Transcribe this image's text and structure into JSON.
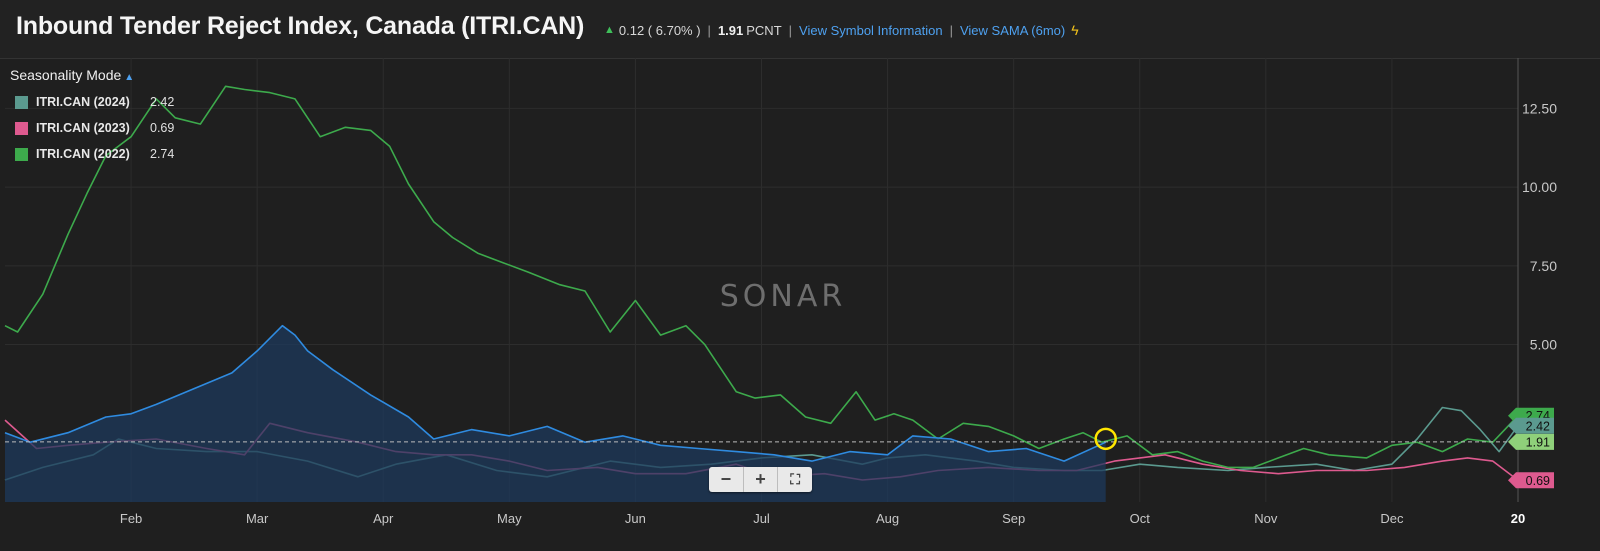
{
  "header": {
    "title": "Inbound Tender Reject Index, Canada (ITRI.CAN)",
    "change": "0.12 ( 6.70% )",
    "value": "1.91",
    "unit": "PCNT",
    "link_symbol": "View Symbol Information",
    "link_sama": "View SAMA (6mo)",
    "sama_icon": "sama-bolt-icon"
  },
  "legend": {
    "mode_label": "Seasonality Mode",
    "items": [
      {
        "name": "ITRI.CAN (2024)",
        "value": "2.42",
        "color": "#5b9a8f"
      },
      {
        "name": "ITRI.CAN (2023)",
        "value": "0.69",
        "color": "#de5a8f"
      },
      {
        "name": "ITRI.CAN (2022)",
        "value": "2.74",
        "color": "#3daa4c"
      }
    ]
  },
  "watermark": "SONAR",
  "zoom": {
    "minus": "−",
    "plus": "+",
    "fit": "⛶"
  },
  "chart_data": {
    "type": "line",
    "x_unit": "month",
    "xlim": [
      0,
      12
    ],
    "ylim": [
      0,
      14.1
    ],
    "y_ticks": [
      5.0,
      7.5,
      10.0,
      12.5
    ],
    "y_tick_labels": [
      "5.00",
      "7.50",
      "10.00",
      "12.50"
    ],
    "x_ticks": [
      1,
      2,
      3,
      4,
      5,
      6,
      7,
      8,
      9,
      10,
      11,
      12
    ],
    "x_tick_labels": [
      "Feb",
      "Mar",
      "Apr",
      "May",
      "Jun",
      "Jul",
      "Aug",
      "Sep",
      "Oct",
      "Nov",
      "Dec",
      "20"
    ],
    "reference_value": 1.91,
    "current_x": 8.73,
    "end_labels": [
      {
        "value": 2.74,
        "label": "2.74",
        "color": "#3daa4c"
      },
      {
        "value": 2.42,
        "label": "2.42",
        "color": "#5b9a8f"
      },
      {
        "value": 1.91,
        "label": "1.91",
        "color": "#8fd07a"
      },
      {
        "value": 0.69,
        "label": "0.69",
        "color": "#de5a8f"
      }
    ],
    "series": [
      {
        "name": "ITRI.CAN (2024)",
        "color": "#5b9a8f",
        "x": [
          0,
          0.3,
          0.7,
          0.9,
          1.2,
          1.6,
          2.0,
          2.4,
          2.8,
          3.1,
          3.5,
          3.9,
          4.3,
          4.8,
          5.2,
          5.6,
          6.0,
          6.4,
          6.8,
          7.0,
          7.3,
          7.7,
          8.0,
          8.4,
          8.7,
          9.0,
          9.3,
          9.7,
          10.0,
          10.4,
          10.7,
          11.0,
          11.2,
          11.4,
          11.55,
          11.7,
          11.85,
          12.0
        ],
        "y": [
          0.7,
          1.1,
          1.5,
          2.0,
          1.7,
          1.6,
          1.6,
          1.3,
          0.8,
          1.2,
          1.5,
          1.0,
          0.8,
          1.3,
          1.1,
          1.2,
          1.4,
          1.5,
          1.2,
          1.4,
          1.5,
          1.3,
          1.1,
          1.0,
          1.0,
          1.2,
          1.1,
          1.0,
          1.1,
          1.2,
          1.0,
          1.2,
          2.0,
          3.0,
          2.9,
          2.3,
          1.6,
          2.42
        ]
      },
      {
        "name": "ITRI.CAN (2023)",
        "color": "#de5a8f",
        "x": [
          0,
          0.25,
          0.5,
          0.8,
          1.2,
          1.6,
          1.9,
          2.1,
          2.4,
          2.8,
          3.1,
          3.4,
          3.7,
          4.0,
          4.3,
          4.7,
          5.0,
          5.4,
          5.8,
          6.1,
          6.5,
          6.8,
          7.1,
          7.4,
          7.8,
          8.2,
          8.5,
          8.8,
          9.2,
          9.5,
          9.8,
          10.1,
          10.4,
          10.8,
          11.1,
          11.4,
          11.6,
          11.8,
          12.0
        ],
        "y": [
          2.6,
          1.7,
          1.8,
          1.9,
          2.0,
          1.7,
          1.5,
          2.5,
          2.2,
          1.9,
          1.6,
          1.5,
          1.5,
          1.3,
          1.0,
          1.1,
          0.9,
          0.9,
          1.2,
          0.8,
          0.9,
          0.7,
          0.8,
          1.0,
          1.1,
          1.0,
          1.0,
          1.3,
          1.5,
          1.2,
          1.0,
          0.9,
          1.0,
          1.0,
          1.1,
          1.3,
          1.4,
          1.3,
          0.69
        ]
      },
      {
        "name": "ITRI.CAN (2022)",
        "color": "#3daa4c",
        "x": [
          0,
          0.1,
          0.3,
          0.5,
          0.65,
          0.8,
          1.0,
          1.2,
          1.35,
          1.55,
          1.75,
          1.9,
          2.1,
          2.3,
          2.5,
          2.7,
          2.9,
          3.05,
          3.2,
          3.4,
          3.55,
          3.75,
          3.95,
          4.15,
          4.4,
          4.6,
          4.8,
          5.0,
          5.2,
          5.4,
          5.55,
          5.8,
          5.95,
          6.15,
          6.35,
          6.55,
          6.75,
          6.9,
          7.05,
          7.2,
          7.4,
          7.6,
          7.8,
          8.0,
          8.2,
          8.4,
          8.55,
          8.7,
          8.9,
          9.1,
          9.3,
          9.5,
          9.7,
          9.9,
          10.1,
          10.3,
          10.5,
          10.8,
          11.0,
          11.2,
          11.4,
          11.6,
          11.8,
          12.0
        ],
        "y": [
          5.6,
          5.4,
          6.6,
          8.5,
          9.8,
          11.0,
          11.6,
          12.8,
          12.2,
          12.0,
          13.2,
          13.1,
          13.0,
          12.8,
          11.6,
          11.9,
          11.8,
          11.3,
          10.1,
          8.9,
          8.4,
          7.9,
          7.6,
          7.3,
          6.9,
          6.7,
          5.4,
          6.4,
          5.3,
          5.6,
          5.0,
          3.5,
          3.3,
          3.4,
          2.7,
          2.5,
          3.5,
          2.6,
          2.8,
          2.6,
          2.0,
          2.5,
          2.4,
          2.1,
          1.7,
          2.0,
          2.2,
          1.9,
          2.1,
          1.5,
          1.6,
          1.3,
          1.1,
          1.1,
          1.4,
          1.7,
          1.5,
          1.4,
          1.8,
          1.9,
          1.6,
          2.0,
          1.9,
          2.74
        ]
      },
      {
        "name": "ITRI.CAN",
        "color": "#2f8be0",
        "area": true,
        "x": [
          0,
          0.2,
          0.5,
          0.8,
          1.0,
          1.2,
          1.5,
          1.8,
          2.0,
          2.2,
          2.3,
          2.4,
          2.6,
          2.9,
          3.2,
          3.4,
          3.7,
          4.0,
          4.3,
          4.6,
          4.9,
          5.2,
          5.5,
          5.8,
          6.1,
          6.4,
          6.7,
          7.0,
          7.2,
          7.5,
          7.8,
          8.1,
          8.4,
          8.73
        ],
        "y": [
          2.2,
          1.9,
          2.2,
          2.7,
          2.8,
          3.1,
          3.6,
          4.1,
          4.8,
          5.6,
          5.3,
          4.8,
          4.2,
          3.4,
          2.7,
          2.0,
          2.3,
          2.1,
          2.4,
          1.9,
          2.1,
          1.8,
          1.7,
          1.6,
          1.5,
          1.3,
          1.6,
          1.5,
          2.1,
          2.0,
          1.6,
          1.7,
          1.3,
          1.9
        ]
      }
    ]
  }
}
